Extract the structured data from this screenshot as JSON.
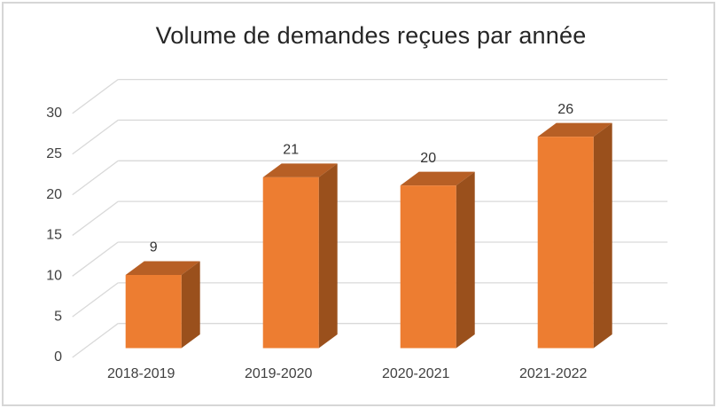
{
  "chart_data": {
    "type": "bar",
    "subtype": "3d-column",
    "title": "Volume de demandes reçues par année",
    "categories": [
      "2018-2019",
      "2019-2020",
      "2020-2021",
      "2021-2022"
    ],
    "values": [
      9,
      21,
      20,
      26
    ],
    "xlabel": "",
    "ylabel": "",
    "ylim": [
      0,
      30
    ],
    "yticks": [
      0,
      5,
      10,
      15,
      20,
      25,
      30
    ],
    "grid": true,
    "legend": "none",
    "data_labels": true,
    "colors": {
      "bar_front": "#ED7D31",
      "bar_top": "#B75F25",
      "bar_side": "#9A501C",
      "gridline": "#D9D9D9",
      "axis_text": "#404040",
      "value_text": "#333333",
      "title_text": "#262626",
      "border": "#D6D6D6",
      "background": "#FFFFFF"
    }
  }
}
